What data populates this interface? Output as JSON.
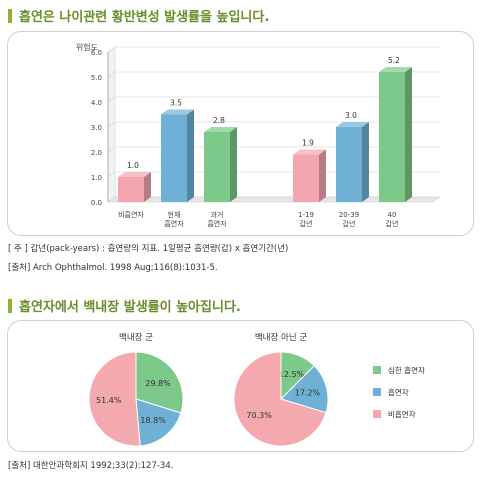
{
  "section1": {
    "heading": "흡연은 나이관련 황반변성 발생률을 높입니다.",
    "note1": "[ 주 ] 갑년(pack-years) : 흡연량의 지표. 1일평균 흡연량(갑) x 흡연기간(년)",
    "note2": "[출처] Arch Ophthalmol. 1998  Aug;116(8):1031-5."
  },
  "section2": {
    "heading": "흡연자에서 백내장 발생률이 높아집니다.",
    "note": "[출처] 대한안과학회지 1992;33(2):127-34."
  },
  "chart_data": [
    {
      "type": "bar",
      "ylabel": "위험도",
      "ylim": [
        0,
        6
      ],
      "yticks": [
        "0.0",
        "1.0",
        "2.0",
        "3.0",
        "4.0",
        "5.0",
        "6.0"
      ],
      "grid": true,
      "groups": [
        {
          "categories": [
            [
              "비흡연자"
            ],
            [
              "현재",
              "흡연자"
            ],
            [
              "과거",
              "흡연자"
            ]
          ],
          "values": [
            1.0,
            3.5,
            2.8
          ],
          "labels": [
            "1.0",
            "3.5",
            "2.8"
          ],
          "colors": [
            "#f1a7ad",
            "#6fb0d6",
            "#7cc98a"
          ]
        },
        {
          "categories": [
            [
              "1-19",
              "갑년"
            ],
            [
              "20-39",
              "갑년"
            ],
            [
              "40",
              "갑년"
            ]
          ],
          "values": [
            1.9,
            3.0,
            5.2
          ],
          "labels": [
            "1.9",
            "3.0",
            "5.2"
          ],
          "colors": [
            "#f1a7ad",
            "#6fb0d6",
            "#7cc98a"
          ]
        }
      ]
    },
    {
      "type": "pie",
      "title": "백내장 군",
      "slices": [
        {
          "name": "심한 흡연자",
          "value": 29.8,
          "label": "29.8%",
          "color": "#7cc98a"
        },
        {
          "name": "흡연자",
          "value": 18.8,
          "label": "18.8%",
          "color": "#6fb0d6"
        },
        {
          "name": "비흡연자",
          "value": 51.4,
          "label": "51.4%",
          "color": "#f4a9ae"
        }
      ]
    },
    {
      "type": "pie",
      "title": "백내장 아닌 군",
      "slices": [
        {
          "name": "심한 흡연자",
          "value": 12.5,
          "label": "12.5%",
          "color": "#7cc98a"
        },
        {
          "name": "흡연자",
          "value": 17.2,
          "label": "17.2%",
          "color": "#6fb0d6"
        },
        {
          "name": "비흡연자",
          "value": 70.3,
          "label": "70.3%",
          "color": "#f4a9ae"
        }
      ]
    }
  ],
  "legend": {
    "items": [
      {
        "label": "심한 흡연자",
        "color": "#7cc98a"
      },
      {
        "label": "흡연자",
        "color": "#6fb0d6"
      },
      {
        "label": "비흡연자",
        "color": "#f4a9ae"
      }
    ]
  }
}
